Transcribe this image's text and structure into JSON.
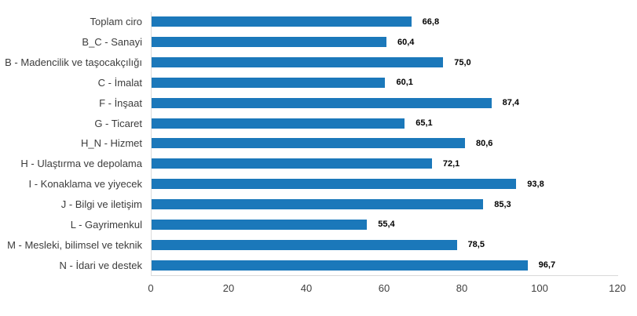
{
  "chart_data": {
    "type": "bar",
    "orientation": "horizontal",
    "title": "",
    "xlabel": "",
    "ylabel": "",
    "categories": [
      "Toplam ciro",
      "B_C - Sanayi",
      "B - Madencilik ve taşocakçılığı",
      "C - İmalat",
      "F - İnşaat",
      "G - Ticaret",
      "H_N - Hizmet",
      "H - Ulaştırma ve depolama",
      "I - Konaklama ve yiyecek",
      "J - Bilgi ve iletişim",
      "L - Gayrimenkul",
      "M - Mesleki, bilimsel ve teknik",
      "N - İdari ve destek"
    ],
    "values": [
      66.8,
      60.4,
      75.0,
      60.1,
      87.4,
      65.1,
      80.6,
      72.1,
      93.8,
      85.3,
      55.4,
      78.5,
      96.7
    ],
    "value_labels": [
      "66,8",
      "60,4",
      "75,0",
      "60,1",
      "87,4",
      "65,1",
      "80,6",
      "72,1",
      "93,8",
      "85,3",
      "55,4",
      "78,5",
      "96,7"
    ],
    "xlim": [
      0,
      120
    ],
    "x_ticks": [
      0,
      20,
      40,
      60,
      80,
      100,
      120
    ],
    "x_tick_labels": [
      "0",
      "20",
      "40",
      "60",
      "80",
      "100",
      "120"
    ],
    "grid": false,
    "legend": "none",
    "colors": {
      "bar": "#1b78ba",
      "value_label": "#000000",
      "axis_line": "#d9d9d9",
      "category_label": "#3c3c3c",
      "tick_label": "#3f3f3f",
      "background": "#ffffff"
    }
  }
}
